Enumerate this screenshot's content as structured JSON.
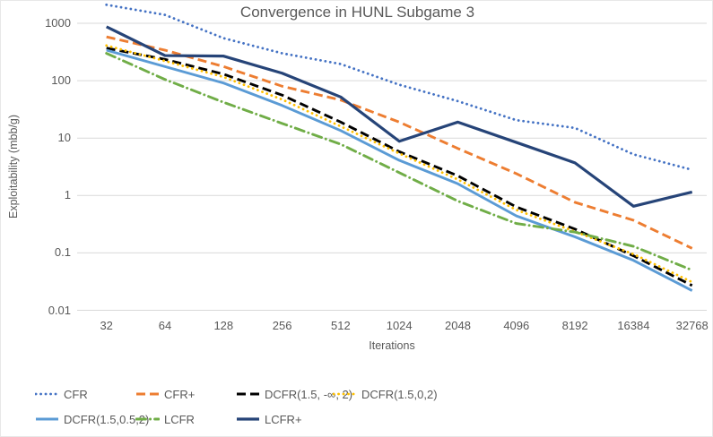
{
  "chart": {
    "title": "Convergence in HUNL Subgame 3",
    "xlabel": "Iterations",
    "ylabel": "Exploitability (mbb/g)"
  },
  "chart_data": {
    "type": "line",
    "title": "Convergence in HUNL Subgame 3",
    "xlabel": "Iterations",
    "ylabel": "Exploitability (mbb/g)",
    "x_scale": "log2-categories",
    "y_scale": "log10",
    "grid": "horizontal-only",
    "legend_position": "bottom",
    "categories": [
      32,
      64,
      128,
      256,
      512,
      1024,
      2048,
      4096,
      8192,
      16384,
      32768
    ],
    "y_ticks": [
      "1000",
      "100",
      "10",
      "1",
      "0.1",
      "0.01"
    ],
    "ylim": [
      0.01,
      2400
    ],
    "gridline_color": "#d9d9d9",
    "text_color": "#595959",
    "series": [
      {
        "name": "CFR",
        "color": "#4472c4",
        "style": "dotted",
        "stroke_width": 2.8,
        "values": [
          2100,
          1400,
          550,
          300,
          195,
          85,
          44,
          20.5,
          15,
          5.2,
          2.8
        ]
      },
      {
        "name": "CFR+",
        "color": "#ed7d31",
        "style": "dashed",
        "stroke_width": 2.9,
        "values": [
          580,
          340,
          176,
          80,
          46,
          19,
          6.6,
          2.4,
          0.76,
          0.37,
          0.12
        ]
      },
      {
        "name": "DCFR(1.5, -∞, 2)",
        "color": "#000000",
        "style": "dashed",
        "stroke_width": 2.9,
        "values": [
          370,
          235,
          130,
          56,
          19,
          5.8,
          2.2,
          0.63,
          0.26,
          0.089,
          0.027
        ]
      },
      {
        "name": "DCFR(1.5,0,2)",
        "color": "#ffc000",
        "style": "dotted",
        "stroke_width": 2.8,
        "values": [
          410,
          220,
          116,
          47,
          16,
          5.4,
          1.9,
          0.56,
          0.235,
          0.095,
          0.031
        ]
      },
      {
        "name": "DCFR(1.5,0.5,2)",
        "color": "#5b9bd5",
        "style": "solid",
        "stroke_width": 2.9,
        "values": [
          340,
          176,
          91,
          37,
          13.5,
          4.1,
          1.6,
          0.44,
          0.19,
          0.074,
          0.022
        ]
      },
      {
        "name": "LCFR",
        "color": "#70ad47",
        "style": "dashdot",
        "stroke_width": 2.9,
        "values": [
          300,
          105,
          42,
          18,
          7.8,
          2.5,
          0.8,
          0.325,
          0.23,
          0.13,
          0.05
        ]
      },
      {
        "name": "LCFR+",
        "color": "#264478",
        "style": "solid",
        "stroke_width": 3.2,
        "values": [
          870,
          274,
          268,
          135,
          52,
          8.8,
          19,
          8.4,
          3.7,
          0.65,
          1.15
        ]
      }
    ],
    "legend_rows": [
      [
        "CFR",
        "CFR+",
        "DCFR(1.5, -∞, 2)",
        "DCFR(1.5,0,2)"
      ],
      [
        "DCFR(1.5,0.5,2)",
        "LCFR",
        "LCFR+"
      ]
    ]
  }
}
